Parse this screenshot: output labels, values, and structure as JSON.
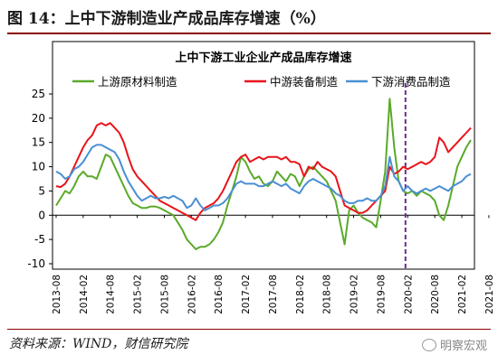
{
  "figure": {
    "title": "图 14：上中下游制造业产成品库存增速（%）",
    "source": "资料来源：WIND，财信研究院",
    "watermark": "明察宏观",
    "watermark_icon": "wechat-icon"
  },
  "chart_data": {
    "type": "line",
    "title": "上中下游工业企业产成品库存增速",
    "xlabel": "",
    "ylabel": "",
    "ylim": [
      -10,
      25
    ],
    "yticks": [
      -10,
      -5,
      0,
      5,
      10,
      15,
      20,
      25
    ],
    "x_start": "2013-08",
    "x_end": "2021-08",
    "xtick_labels": [
      "2013-08",
      "2014-02",
      "2014-08",
      "2015-02",
      "2015-08",
      "2016-02",
      "2016-08",
      "2017-02",
      "2017-08",
      "2018-02",
      "2018-08",
      "2019-02",
      "2019-08",
      "2020-02",
      "2020-08",
      "2021-02",
      "2021-08"
    ],
    "vline_at": "2020-01",
    "legend_position": "top",
    "grid": false,
    "series": [
      {
        "name": "上游原材料制造",
        "color": "#5aaa2a",
        "values": [
          2.0,
          3.5,
          5.0,
          4.5,
          6.0,
          8.0,
          9.0,
          8.0,
          8.0,
          7.5,
          10.0,
          12.5,
          12.0,
          10.0,
          8.0,
          6.0,
          4.0,
          2.5,
          2.0,
          1.5,
          1.5,
          1.8,
          1.8,
          1.5,
          1.0,
          0.5,
          0.0,
          -1.5,
          -3.0,
          -5.0,
          -6.0,
          -7.0,
          -6.5,
          -6.5,
          -6.0,
          -5.0,
          -3.5,
          -1.5,
          2.0,
          5.0,
          8.0,
          12.0,
          11.0,
          9.0,
          7.5,
          8.0,
          6.5,
          6.0,
          7.0,
          9.0,
          8.0,
          7.0,
          8.5,
          8.0,
          6.0,
          8.0,
          9.5,
          10.0,
          9.0,
          8.0,
          7.0,
          5.0,
          3.0,
          -1.5,
          -6.0,
          1.0,
          2.0,
          0.5,
          -0.5,
          -1.0,
          -1.5,
          -2.5,
          3.0,
          9.0,
          24.0,
          14.0,
          7.0,
          5.0,
          4.5,
          5.0,
          4.0,
          5.0,
          4.5,
          4.0,
          3.0,
          0.0,
          -1.0,
          2.0,
          6.0,
          10.0,
          12.0,
          14.0,
          15.5
        ]
      },
      {
        "name": "中游装备制造",
        "color": "#e8141a",
        "values": [
          6.0,
          5.8,
          6.5,
          8.0,
          10.0,
          12.0,
          14.0,
          15.5,
          16.5,
          18.5,
          19.0,
          18.5,
          19.0,
          18.0,
          17.0,
          15.0,
          12.0,
          9.5,
          8.0,
          7.0,
          6.0,
          5.0,
          4.0,
          3.0,
          2.5,
          2.0,
          1.5,
          1.0,
          0.5,
          0.0,
          -0.5,
          -1.0,
          0.5,
          1.5,
          2.0,
          2.5,
          3.5,
          5.0,
          7.0,
          9.0,
          11.0,
          12.0,
          12.5,
          11.0,
          11.5,
          12.0,
          11.5,
          12.0,
          12.0,
          12.0,
          11.5,
          12.0,
          11.0,
          11.0,
          10.5,
          8.0,
          10.0,
          9.5,
          11.0,
          10.0,
          9.5,
          9.0,
          8.0,
          5.0,
          2.0,
          1.5,
          1.0,
          0.5,
          0.5,
          1.0,
          2.0,
          3.0,
          4.0,
          5.0,
          10.0,
          8.5,
          9.0,
          10.0,
          9.5,
          10.0,
          10.5,
          11.0,
          10.5,
          11.0,
          12.0,
          16.0,
          15.0,
          13.0,
          14.0,
          15.0,
          16.0,
          17.0,
          18.0
        ]
      },
      {
        "name": "下游消费品制造",
        "color": "#4a8fd4",
        "values": [
          9.0,
          8.5,
          7.5,
          8.0,
          9.5,
          10.0,
          11.0,
          12.5,
          14.0,
          14.5,
          14.5,
          14.0,
          13.5,
          13.0,
          11.5,
          9.0,
          7.0,
          5.5,
          4.0,
          3.0,
          3.5,
          4.0,
          3.5,
          3.5,
          3.8,
          3.5,
          4.0,
          3.5,
          3.0,
          1.5,
          2.0,
          3.5,
          2.0,
          1.0,
          1.5,
          2.0,
          2.0,
          2.5,
          3.5,
          5.0,
          6.5,
          7.0,
          6.5,
          6.5,
          6.5,
          6.0,
          6.0,
          6.5,
          7.0,
          6.5,
          6.0,
          6.5,
          5.5,
          5.0,
          4.5,
          6.0,
          7.0,
          7.5,
          7.0,
          6.5,
          6.0,
          5.5,
          4.5,
          4.0,
          3.0,
          2.5,
          2.5,
          3.0,
          3.0,
          3.5,
          3.0,
          3.0,
          4.0,
          6.0,
          12.0,
          8.0,
          7.0,
          5.0,
          6.0,
          5.0,
          4.5,
          5.0,
          5.5,
          5.0,
          5.5,
          6.0,
          5.5,
          5.0,
          6.0,
          6.5,
          7.0,
          8.0,
          8.5
        ]
      }
    ]
  }
}
